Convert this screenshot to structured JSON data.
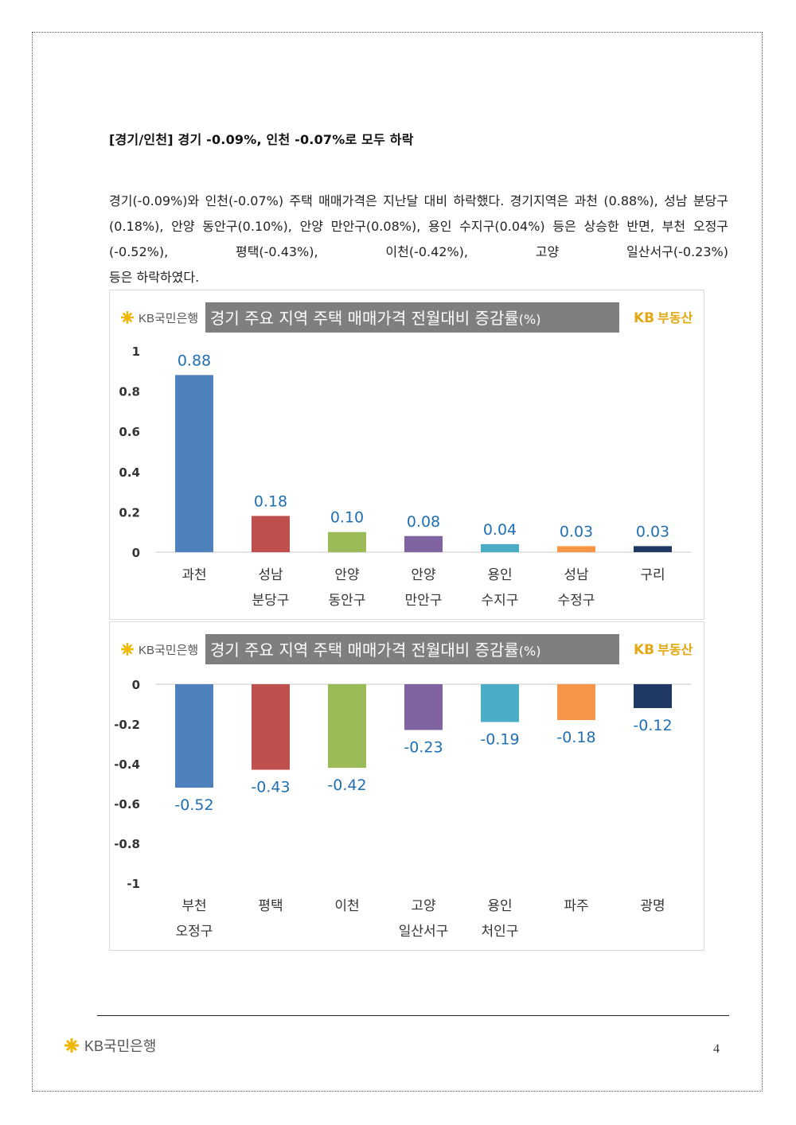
{
  "heading": "[경기/인천] 경기 -0.09%, 인천 -0.07%로 모두 하락",
  "paragraph": {
    "line1": "경기(-0.09%)와 인천(-0.07%) 주택 매매가격은 지난달 대비 하락했다. 경기지역은 과천",
    "line2": "(0.88%), 성남 분당구(0.18%), 안양 동안구(0.10%), 안양 만안구(0.08%), 용인 수지구(0.04%)",
    "line3": "등은 상승한 반면, 부천 오정구(-0.52%), 평택(-0.43%), 이천(-0.42%), 고양 일산서구(-0.23%)",
    "line4": "등은 하락하였다."
  },
  "brand": {
    "kb_bank": "KB국민은행",
    "kb_realestate_kb": "KB",
    "kb_realestate_text": "부동산"
  },
  "colors": [
    "#4f81bd",
    "#c0504d",
    "#9bbb59",
    "#8064a2",
    "#4bacc6",
    "#f79646",
    "#1f3864"
  ],
  "chart_data": [
    {
      "type": "bar",
      "title_main": "경기 주요 지역 주택 매매가격 전월대비 증감률",
      "title_unit": "(%)",
      "categories": [
        [
          "과천"
        ],
        [
          "성남",
          "분당구"
        ],
        [
          "안양",
          "동안구"
        ],
        [
          "안양",
          "만안구"
        ],
        [
          "용인",
          "수지구"
        ],
        [
          "성남",
          "수정구"
        ],
        [
          "구리"
        ]
      ],
      "values": [
        0.88,
        0.18,
        0.1,
        0.08,
        0.04,
        0.03,
        0.03
      ],
      "value_labels": [
        "0.88",
        "0.18",
        "0.10",
        "0.08",
        "0.04",
        "0.03",
        "0.03"
      ],
      "ylim": [
        0,
        1
      ],
      "yticks": [
        "1",
        "0.8",
        "0.6",
        "0.4",
        "0.2",
        "0"
      ],
      "ytick_values": [
        1,
        0.8,
        0.6,
        0.4,
        0.2,
        0
      ]
    },
    {
      "type": "bar",
      "title_main": "경기 주요 지역 주택 매매가격 전월대비 증감률",
      "title_unit": "(%)",
      "categories": [
        [
          "부천",
          "오정구"
        ],
        [
          "평택"
        ],
        [
          "이천"
        ],
        [
          "고양",
          "일산서구"
        ],
        [
          "용인",
          "처인구"
        ],
        [
          "파주"
        ],
        [
          "광명"
        ]
      ],
      "values": [
        -0.52,
        -0.43,
        -0.42,
        -0.23,
        -0.19,
        -0.18,
        -0.12
      ],
      "value_labels": [
        "-0.52",
        "-0.43",
        "-0.42",
        "-0.23",
        "-0.19",
        "-0.18",
        "-0.12"
      ],
      "ylim": [
        -1,
        0
      ],
      "yticks": [
        "0",
        "-0.2",
        "-0.4",
        "-0.6",
        "-0.8",
        "-1"
      ],
      "ytick_values": [
        0,
        -0.2,
        -0.4,
        -0.6,
        -0.8,
        -1
      ]
    }
  ],
  "page_number": "4"
}
